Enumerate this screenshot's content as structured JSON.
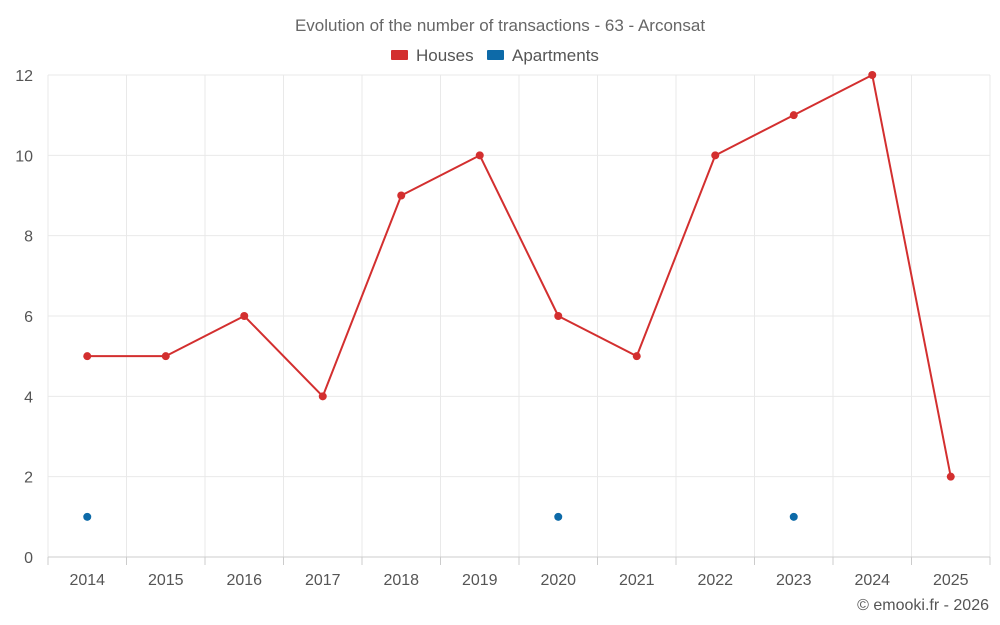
{
  "chart_data": {
    "type": "line",
    "title": "Evolution of the number of transactions - 63 - Arconsat",
    "xlabel": "",
    "ylabel": "",
    "categories": [
      "2014",
      "2015",
      "2016",
      "2017",
      "2018",
      "2019",
      "2020",
      "2021",
      "2022",
      "2023",
      "2024",
      "2025"
    ],
    "ylim": [
      0,
      12
    ],
    "yticks": [
      "0",
      "2",
      "4",
      "6",
      "8",
      "10",
      "12"
    ],
    "grid": true,
    "legend_position": "top-center",
    "series": [
      {
        "name": "Houses",
        "color": "#d32f2f",
        "values": [
          5,
          5,
          6,
          4,
          9,
          10,
          6,
          5,
          10,
          11,
          12,
          2
        ]
      },
      {
        "name": "Apartments",
        "color": "#0d6aa8",
        "values": [
          1,
          null,
          null,
          null,
          null,
          null,
          1,
          null,
          null,
          1,
          null,
          null
        ]
      }
    ]
  },
  "credit": "© emooki.fr - 2026"
}
